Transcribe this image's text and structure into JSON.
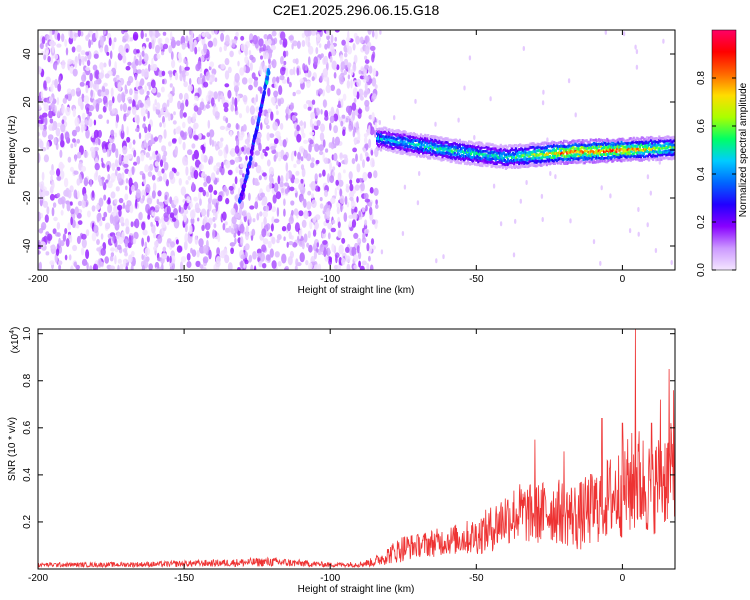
{
  "figure": {
    "title": "C2E1.2025.296.06.15.G18"
  },
  "chart_data": [
    {
      "type": "heatmap",
      "xlabel": "Height of straight line (km)",
      "ylabel": "Frequency (Hz)",
      "xlim": [
        -200,
        18
      ],
      "ylim": [
        -50,
        50
      ],
      "xticks": [
        "-200",
        "-150",
        "-100",
        "-50",
        "0"
      ],
      "yticks": [
        "-40",
        "-20",
        "0",
        "20",
        "40"
      ],
      "colorbar": {
        "label": "Normalized spectral amplitude",
        "range": [
          0,
          1
        ],
        "ticks": [
          "0.0",
          "0.2",
          "0.4",
          "0.6",
          "0.8"
        ],
        "colors": [
          "#f4e6ff",
          "#cc99ff",
          "#8800ff",
          "#2200ff",
          "#0066ff",
          "#00ccff",
          "#00ff66",
          "#aaff00",
          "#ffdd00",
          "#ff6600",
          "#ff0000",
          "#ff0066"
        ]
      },
      "features": {
        "noise_region_x": [
          -200,
          -84
        ],
        "signal_track": {
          "x_range": [
            -84,
            18
          ],
          "frequency": [
            [
              -84,
              5
            ],
            [
              -60,
              0
            ],
            [
              -40,
              -3
            ],
            [
              -20,
              -1
            ],
            [
              0,
              0
            ],
            [
              18,
              1
            ]
          ],
          "amplitude": [
            [
              -84,
              0.45
            ],
            [
              -60,
              0.55
            ],
            [
              -40,
              0.5
            ],
            [
              -20,
              0.85
            ],
            [
              0,
              0.85
            ],
            [
              18,
              0.6
            ]
          ]
        },
        "oblique_streak": [
          [
            -131,
            -22
          ],
          [
            -128,
            -8
          ],
          [
            -125,
            10
          ],
          [
            -121,
            33
          ]
        ]
      }
    },
    {
      "type": "line",
      "xlabel": "Height of straight line (km)",
      "ylabel": "SNR (10 * v/v)",
      "y_multiplier": "(x10",
      "y_multiplier_exp": "4",
      "y_multiplier_close": ")",
      "xlim": [
        -200,
        18
      ],
      "ylim": [
        0,
        1.02
      ],
      "xticks": [
        "-200",
        "-150",
        "-100",
        "-50",
        "0"
      ],
      "yticks": [
        "0.2",
        "0.4",
        "0.6",
        "0.8",
        "1.0"
      ],
      "series": [
        {
          "color": "#ee3333",
          "x": [
            -200,
            -180,
            -160,
            -140,
            -120,
            -100,
            -90,
            -85,
            -80,
            -75,
            -70,
            -65,
            -60,
            -55,
            -50,
            -45,
            -40,
            -35,
            -30,
            -25,
            -20,
            -15,
            -10,
            -5,
            0,
            5,
            10,
            15,
            18
          ],
          "y": [
            0.018,
            0.018,
            0.02,
            0.025,
            0.03,
            0.018,
            0.02,
            0.03,
            0.06,
            0.09,
            0.1,
            0.11,
            0.12,
            0.13,
            0.14,
            0.17,
            0.22,
            0.24,
            0.23,
            0.25,
            0.24,
            0.22,
            0.26,
            0.3,
            0.33,
            0.38,
            0.34,
            0.4,
            0.42
          ],
          "noise": [
            0.01,
            0.01,
            0.012,
            0.015,
            0.02,
            0.01,
            0.012,
            0.02,
            0.04,
            0.06,
            0.05,
            0.06,
            0.06,
            0.07,
            0.08,
            0.1,
            0.12,
            0.13,
            0.13,
            0.14,
            0.14,
            0.15,
            0.16,
            0.18,
            0.2,
            0.24,
            0.2,
            0.22,
            0.2
          ],
          "peaks": [
            [
              -30,
              0.55
            ],
            [
              -20,
              0.5
            ],
            [
              -7,
              0.64
            ],
            [
              0,
              0.62
            ],
            [
              4.5,
              1.02
            ],
            [
              10,
              0.62
            ],
            [
              13,
              0.72
            ],
            [
              16,
              0.85
            ],
            [
              17.5,
              0.76
            ]
          ]
        }
      ]
    }
  ]
}
